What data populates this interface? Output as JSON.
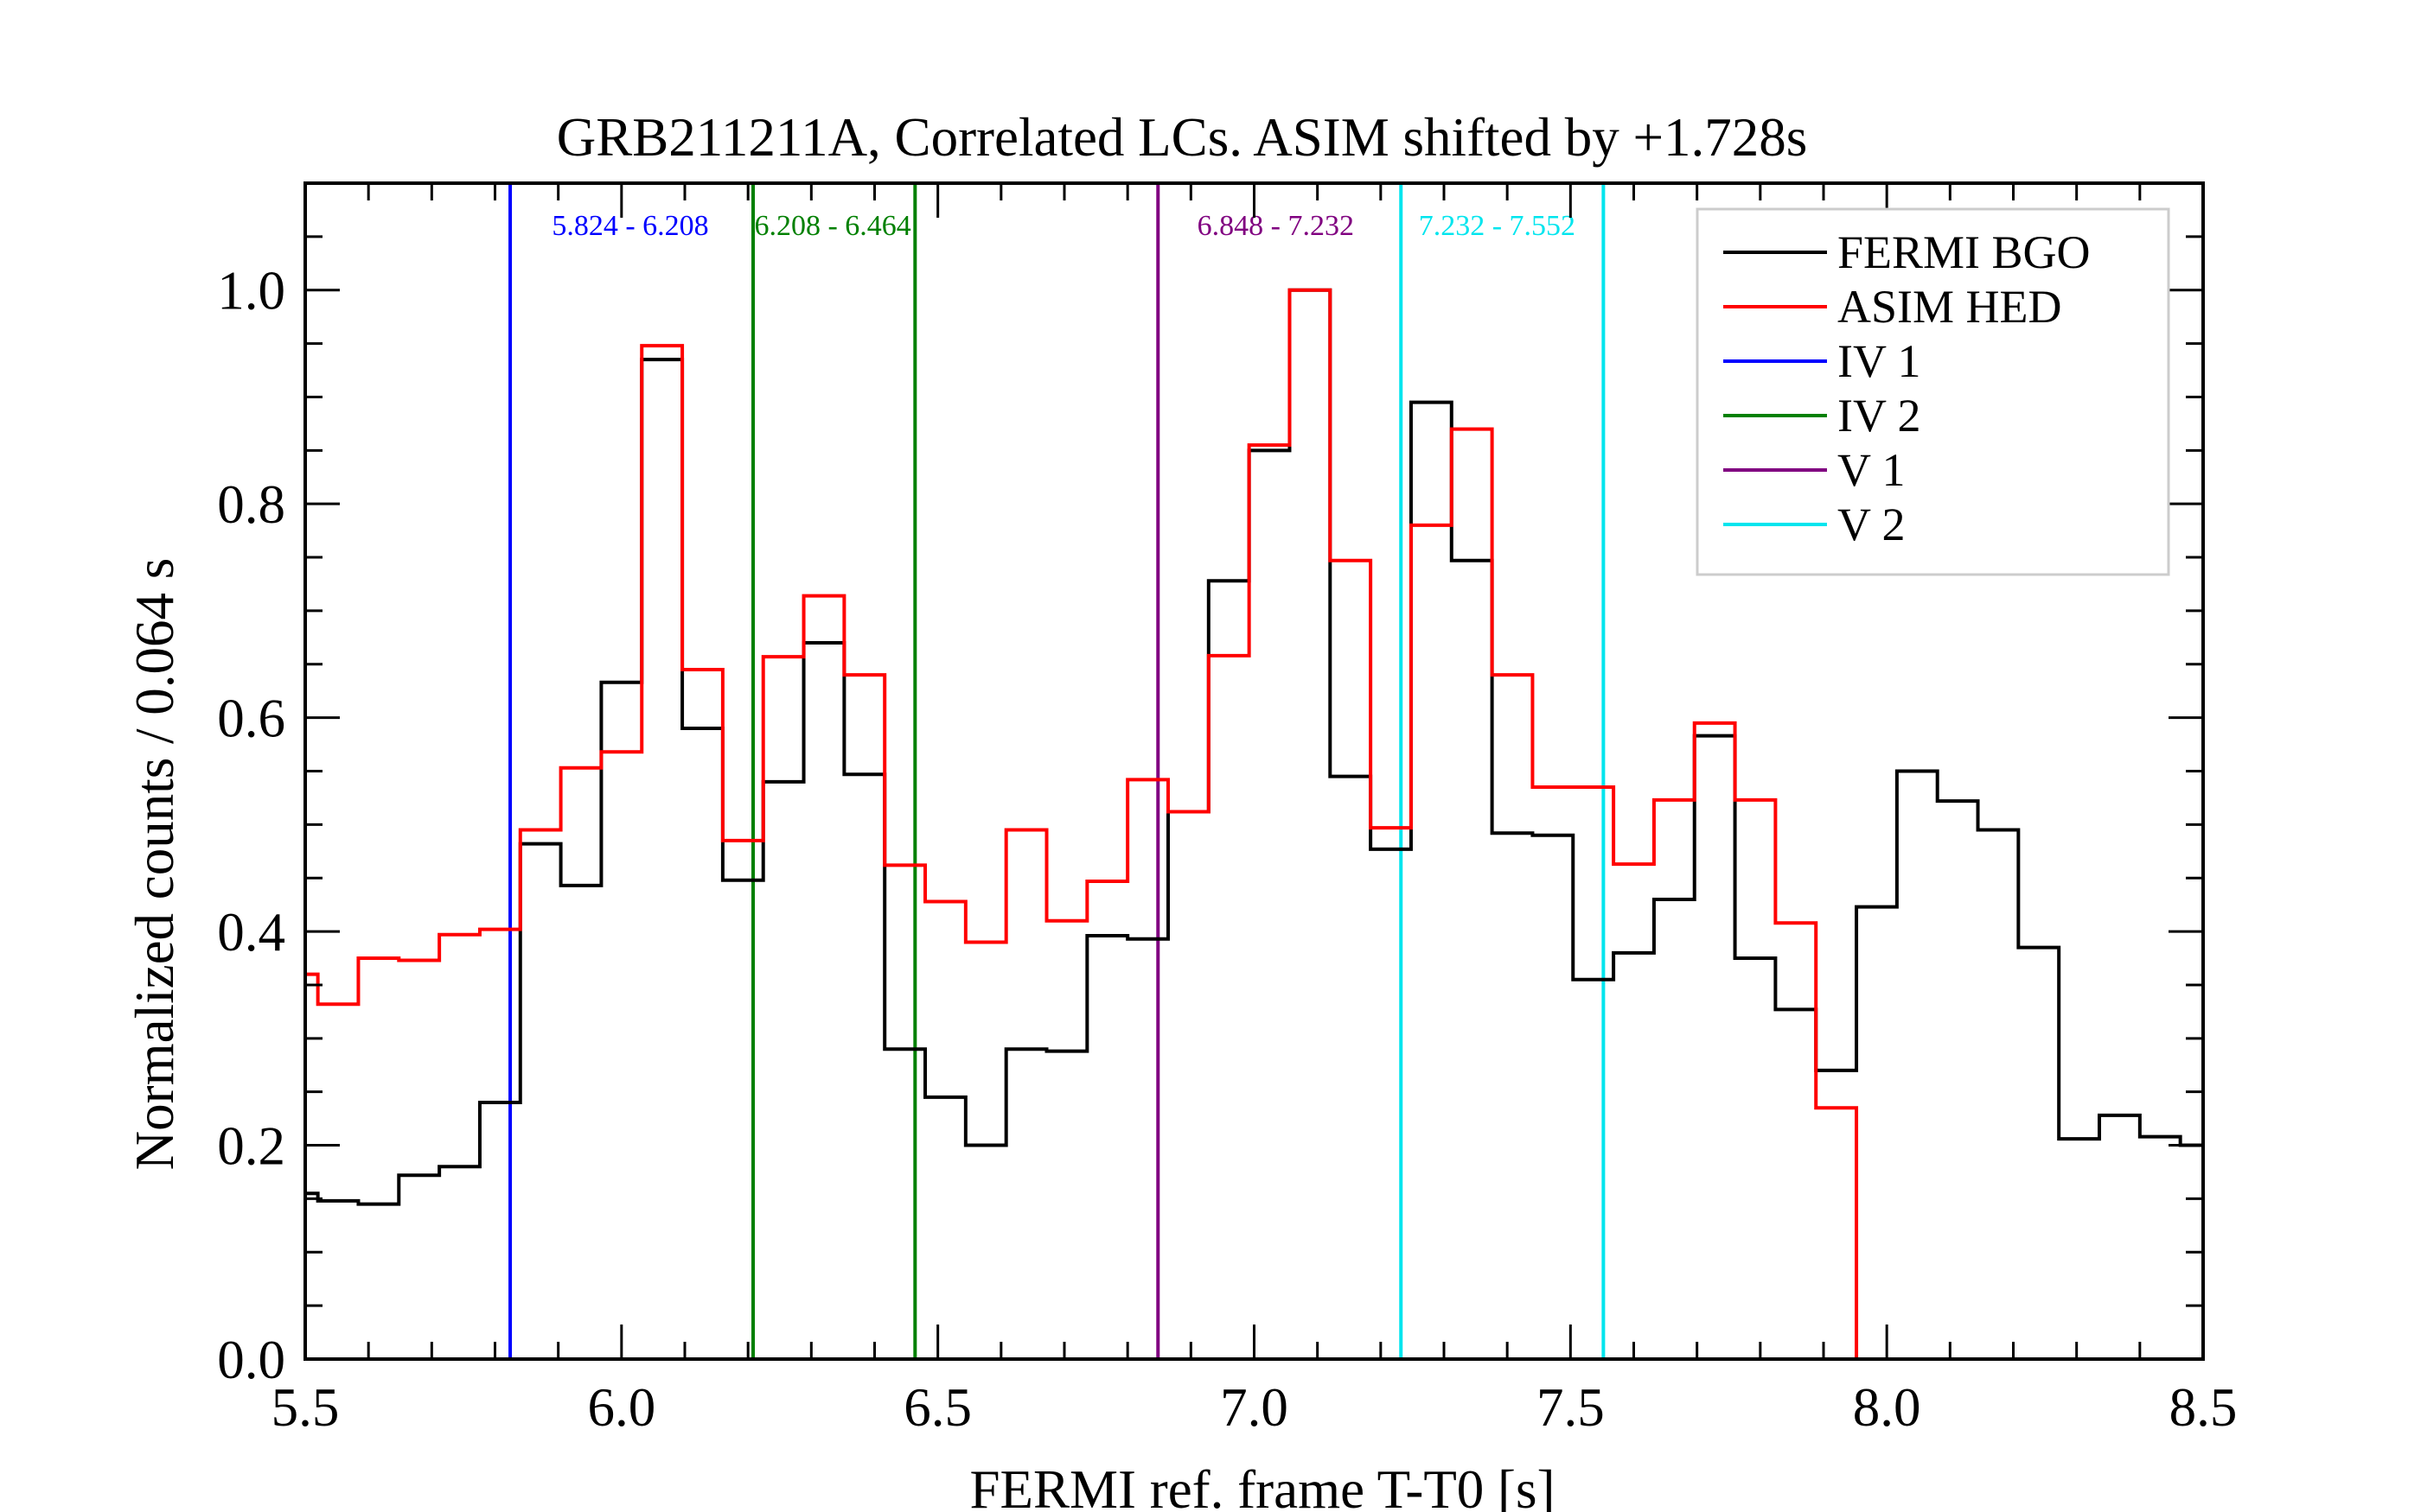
{
  "chart_data": {
    "type": "line",
    "title": "GRB211211A, Correlated LCs. ASIM shifted by +1.728s",
    "xlabel": "FERMI ref. frame  T-T0 [s]",
    "ylabel": "Normalized counts / 0.064 s",
    "xlim": [
      5.5,
      8.5
    ],
    "ylim": [
      0.0,
      1.1
    ],
    "xticks": [
      5.5,
      6.0,
      6.5,
      7.0,
      7.5,
      8.0,
      8.5
    ],
    "xtick_labels": [
      "5.5",
      "6.0",
      "6.5",
      "7.0",
      "7.5",
      "8.0",
      "8.5"
    ],
    "yticks": [
      0.0,
      0.2,
      0.4,
      0.6,
      0.8,
      1.0
    ],
    "ytick_labels": [
      "0.0",
      "0.2",
      "0.4",
      "0.6",
      "0.8",
      "1.0"
    ],
    "legend_position": "top-right",
    "series": [
      {
        "name": "FERMI BGO",
        "color": "#000000",
        "style": "step",
        "edges": [
          5.5,
          5.52,
          5.584,
          5.648,
          5.712,
          5.776,
          5.84,
          5.904,
          5.968,
          6.032,
          6.096,
          6.16,
          6.224,
          6.288,
          6.352,
          6.416,
          6.48,
          6.544,
          6.608,
          6.672,
          6.736,
          6.8,
          6.864,
          6.928,
          6.992,
          7.056,
          7.12,
          7.184,
          7.248,
          7.312,
          7.376,
          7.44,
          7.504,
          7.568,
          7.632,
          7.696,
          7.76,
          7.824,
          7.888,
          7.952,
          8.016,
          8.08,
          8.144,
          8.208,
          8.272,
          8.336,
          8.4,
          8.464,
          8.5
        ],
        "values": [
          0.155,
          0.148,
          0.145,
          0.172,
          0.18,
          0.24,
          0.482,
          0.443,
          0.633,
          0.935,
          0.59,
          0.448,
          0.54,
          0.67,
          0.547,
          0.29,
          0.245,
          0.2,
          0.29,
          0.288,
          0.396,
          0.393,
          0.512,
          0.728,
          0.85,
          1.0,
          0.545,
          0.477,
          0.895,
          0.747,
          0.492,
          0.49,
          0.355,
          0.38,
          0.43,
          0.583,
          0.375,
          0.327,
          0.27,
          0.423,
          0.55,
          0.522,
          0.495,
          0.385,
          0.206,
          0.228,
          0.208,
          0.2
        ]
      },
      {
        "name": "ASIM HED",
        "color": "#ff0000",
        "style": "step",
        "edges": [
          5.5,
          5.52,
          5.584,
          5.648,
          5.712,
          5.776,
          5.84,
          5.904,
          5.968,
          6.032,
          6.096,
          6.16,
          6.224,
          6.288,
          6.352,
          6.416,
          6.48,
          6.544,
          6.608,
          6.672,
          6.736,
          6.8,
          6.864,
          6.928,
          6.992,
          7.056,
          7.12,
          7.184,
          7.248,
          7.312,
          7.376,
          7.44,
          7.504,
          7.568,
          7.632,
          7.696,
          7.76,
          7.824,
          7.888,
          7.952
        ],
        "values": [
          0.36,
          0.332,
          0.375,
          0.373,
          0.397,
          0.402,
          0.495,
          0.553,
          0.568,
          0.948,
          0.645,
          0.485,
          0.657,
          0.714,
          0.64,
          0.462,
          0.428,
          0.39,
          0.495,
          0.41,
          0.447,
          0.542,
          0.512,
          0.658,
          0.855,
          1.0,
          0.747,
          0.497,
          0.78,
          0.87,
          0.64,
          0.535,
          0.535,
          0.463,
          0.523,
          0.595,
          0.523,
          0.408,
          0.235
        ],
        "drop_to": 0.0
      }
    ],
    "vertical_lines": [
      {
        "name": "IV 1",
        "color": "#0000ff",
        "x": 5.824
      },
      {
        "name": "IV 1",
        "color": "#0000ff",
        "x": 6.208
      },
      {
        "name": "IV 2",
        "color": "#008000",
        "x": 6.208
      },
      {
        "name": "IV 2",
        "color": "#008000",
        "x": 6.464
      },
      {
        "name": "V 1",
        "color": "#800080",
        "x": 6.848
      },
      {
        "name": "V 1",
        "color": "#800080",
        "x": 7.232
      },
      {
        "name": "V 2",
        "color": "#00e5ee",
        "x": 7.232
      },
      {
        "name": "V 2",
        "color": "#00e5ee",
        "x": 7.552
      }
    ],
    "visible_vertical_lines": [
      {
        "color": "#0000ff",
        "x": 5.824
      },
      {
        "color": "#008000",
        "x": 6.208
      },
      {
        "color": "#008000",
        "x": 6.464
      },
      {
        "color": "#800080",
        "x": 6.848
      },
      {
        "color": "#00e5ee",
        "x": 7.232
      },
      {
        "color": "#00e5ee",
        "x": 7.552
      }
    ],
    "interval_labels": [
      {
        "text": "5.824 - 6.208",
        "color": "#0000ff",
        "x": 5.89
      },
      {
        "text": "6.208 - 6.464",
        "color": "#008000",
        "x": 6.21
      },
      {
        "text": "6.848 - 7.232",
        "color": "#800080",
        "x": 6.91
      },
      {
        "text": "7.232 - 7.552",
        "color": "#00e5ee",
        "x": 7.26
      }
    ],
    "legend": [
      {
        "label": "FERMI BGO",
        "color": "#000000"
      },
      {
        "label": "ASIM HED",
        "color": "#ff0000"
      },
      {
        "label": "IV 1",
        "color": "#0000ff"
      },
      {
        "label": "IV 2",
        "color": "#008000"
      },
      {
        "label": "V 1",
        "color": "#800080"
      },
      {
        "label": "V 2",
        "color": "#00e5ee"
      }
    ]
  }
}
